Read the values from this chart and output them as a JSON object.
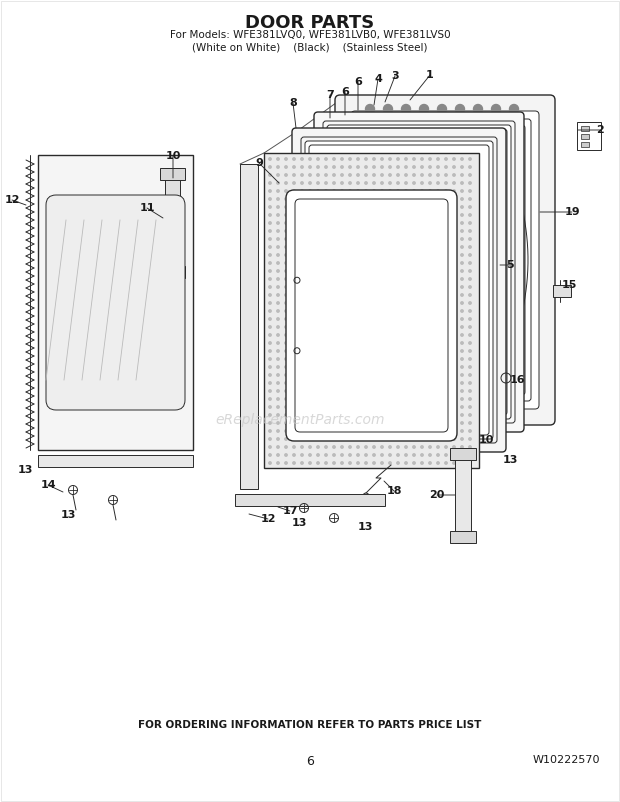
{
  "title": "DOOR PARTS",
  "subtitle1": "For Models: WFE381LVQ0, WFE381LVB0, WFE381LVS0",
  "subtitle2": "(White on White)    (Black)    (Stainless Steel)",
  "footer1": "FOR ORDERING INFORMATION REFER TO PARTS PRICE LIST",
  "footer2": "6",
  "footer3": "W10222570",
  "watermark": "eReplacementParts.com",
  "bg_color": "#ffffff",
  "line_color": "#2a2a2a",
  "label_color": "#1a1a1a",
  "watermark_color": "#c8c8c8",
  "hatch_color": "#bbbbbb"
}
